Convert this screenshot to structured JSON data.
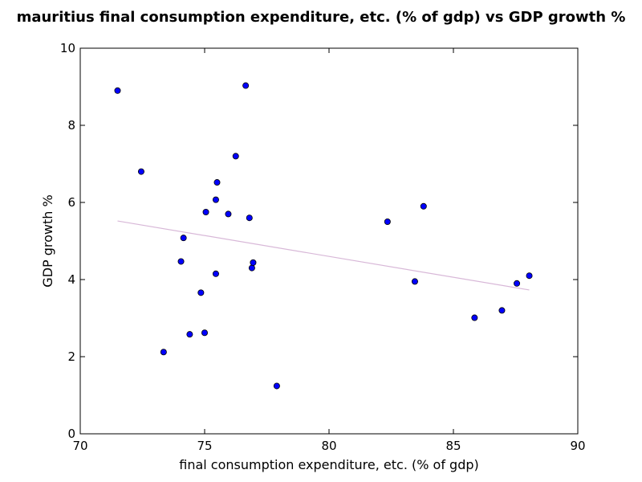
{
  "chart_data": {
    "type": "scatter",
    "title": "mauritius final consumption expenditure, etc. (% of gdp) vs GDP growth %",
    "xlabel": "final consumption expenditure, etc. (% of gdp)",
    "ylabel": "GDP growth %",
    "xlim": [
      70,
      90
    ],
    "ylim": [
      0,
      10
    ],
    "xticks": [
      "70",
      "75",
      "80",
      "85",
      "90"
    ],
    "yticks": [
      "0",
      "2",
      "4",
      "6",
      "8",
      "10"
    ],
    "grid": false,
    "point_color": "#0000ff",
    "trend_color": "#d8b8d8",
    "points": [
      {
        "x": 71.5,
        "y": 8.9
      },
      {
        "x": 72.45,
        "y": 6.8
      },
      {
        "x": 73.35,
        "y": 2.12
      },
      {
        "x": 74.05,
        "y": 4.47
      },
      {
        "x": 74.15,
        "y": 5.08
      },
      {
        "x": 74.4,
        "y": 2.58
      },
      {
        "x": 74.85,
        "y": 3.66
      },
      {
        "x": 75.0,
        "y": 2.62
      },
      {
        "x": 75.05,
        "y": 5.75
      },
      {
        "x": 75.45,
        "y": 6.07
      },
      {
        "x": 75.45,
        "y": 4.15
      },
      {
        "x": 75.5,
        "y": 6.52
      },
      {
        "x": 75.95,
        "y": 5.7
      },
      {
        "x": 76.25,
        "y": 7.2
      },
      {
        "x": 76.65,
        "y": 9.03
      },
      {
        "x": 76.8,
        "y": 5.6
      },
      {
        "x": 76.9,
        "y": 4.3
      },
      {
        "x": 76.95,
        "y": 4.44
      },
      {
        "x": 77.9,
        "y": 1.24
      },
      {
        "x": 82.35,
        "y": 5.5
      },
      {
        "x": 83.45,
        "y": 3.95
      },
      {
        "x": 83.8,
        "y": 5.9
      },
      {
        "x": 85.85,
        "y": 3.01
      },
      {
        "x": 86.95,
        "y": 3.2
      },
      {
        "x": 87.55,
        "y": 3.9
      },
      {
        "x": 88.05,
        "y": 4.1
      }
    ],
    "trend_line": {
      "x": [
        71.5,
        88.05
      ],
      "y": [
        5.52,
        3.73
      ]
    }
  }
}
